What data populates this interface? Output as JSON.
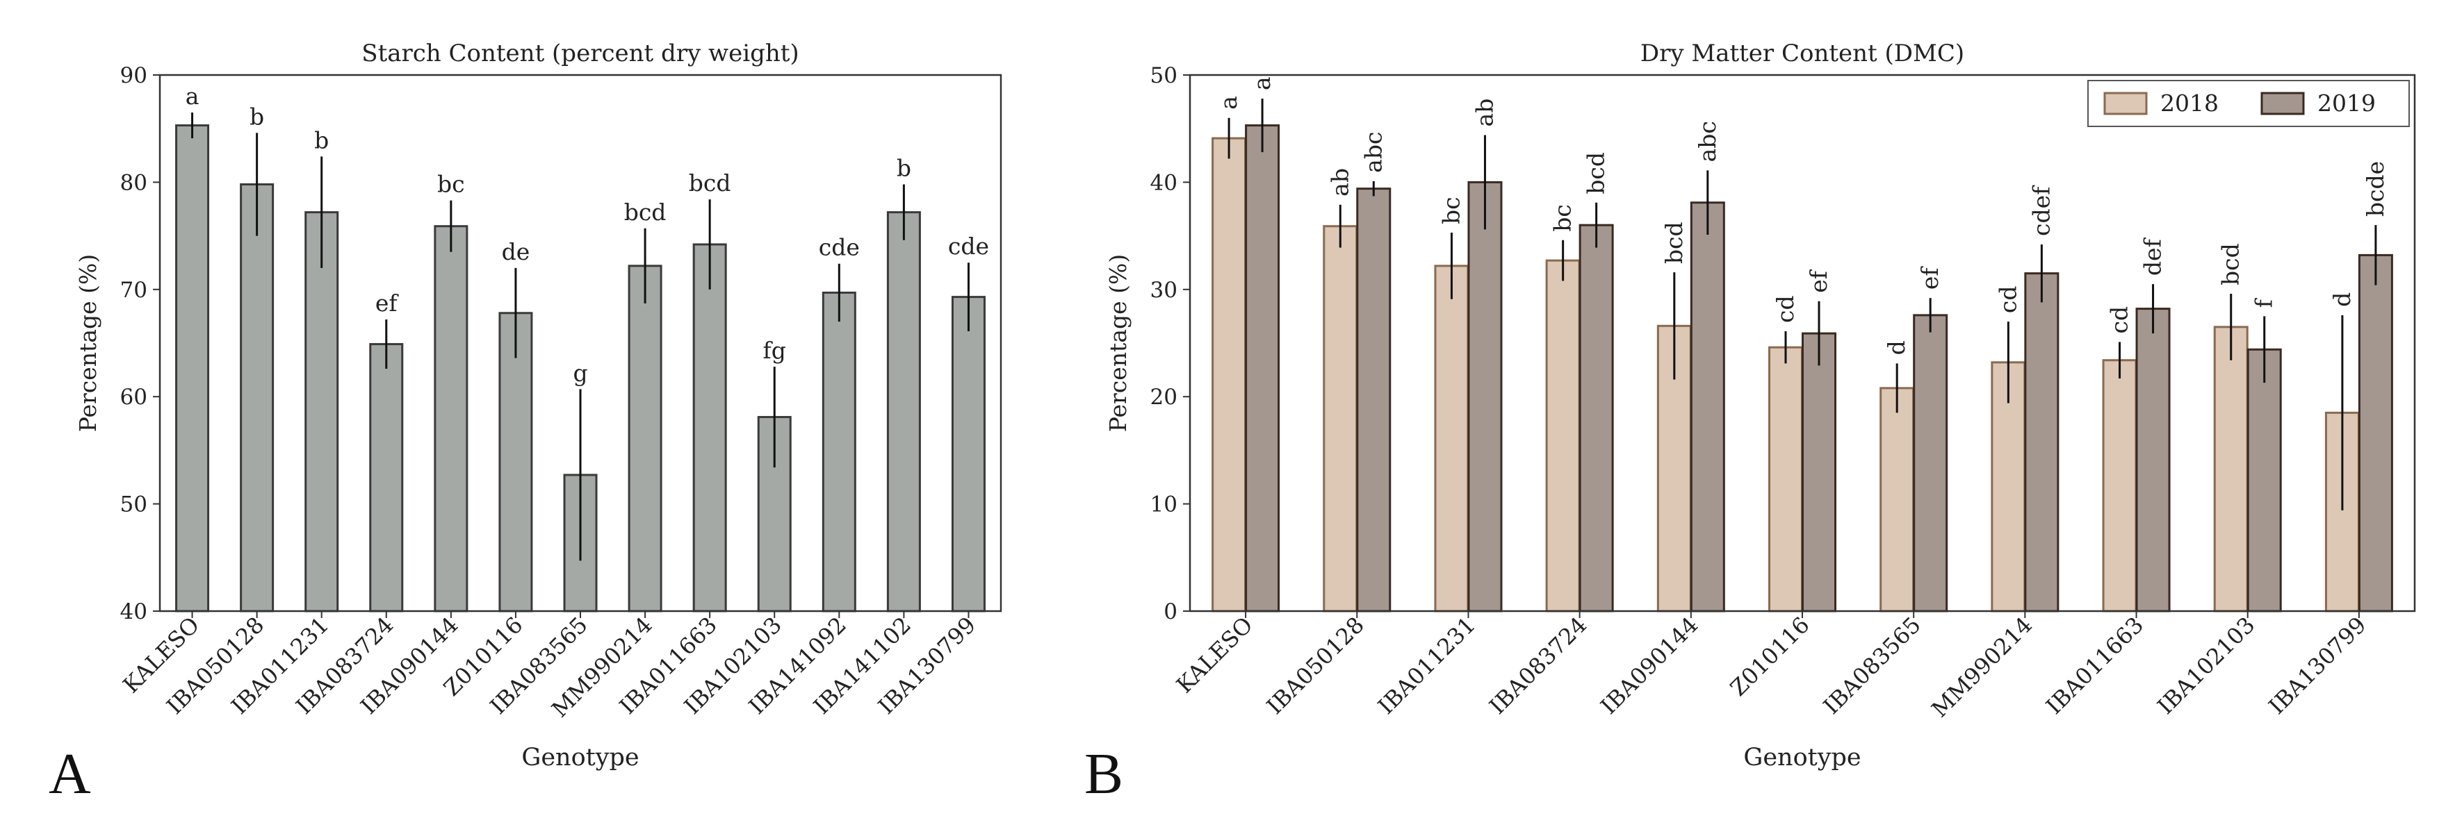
{
  "panels": {
    "a": {
      "letter": "A"
    },
    "b": {
      "letter": "B"
    }
  },
  "chart_data": [
    {
      "id": "a",
      "type": "bar",
      "title": "Starch Content (percent dry weight)",
      "xlabel": "Genotype",
      "ylabel": "Percentage (%)",
      "ylim": [
        40,
        90
      ],
      "yticks": [
        40,
        50,
        60,
        70,
        80,
        90
      ],
      "categories": [
        "KALESO",
        "IBA050128",
        "IBA011231",
        "IBA083724",
        "IBA090144",
        "Z010116",
        "IBA083565",
        "MM990214",
        "IBA011663",
        "IBA102103",
        "IBA141092",
        "IBA141102",
        "IBA130799"
      ],
      "series": [
        {
          "name": "Starch",
          "color": "#a4a9a6",
          "edge": "#3a3a3a",
          "values": [
            85.3,
            79.8,
            77.2,
            64.9,
            75.9,
            67.8,
            52.7,
            72.2,
            74.2,
            58.1,
            69.7,
            77.2,
            69.3
          ],
          "errors": [
            1.2,
            4.8,
            5.2,
            2.3,
            2.4,
            4.2,
            8.0,
            3.5,
            4.2,
            4.7,
            2.7,
            2.6,
            3.2
          ],
          "letters": [
            "a",
            "b",
            "b",
            "ef",
            "bc",
            "de",
            "g",
            "bcd",
            "bcd",
            "fg",
            "cde",
            "b",
            "cde"
          ]
        }
      ]
    },
    {
      "id": "b",
      "type": "bar",
      "title": "Dry Matter Content (DMC)",
      "xlabel": "Genotype",
      "ylabel": "Percentage (%)",
      "ylim": [
        0,
        50
      ],
      "yticks": [
        0,
        10,
        20,
        30,
        40,
        50
      ],
      "legend_position": "top-right",
      "categories": [
        "KALESO",
        "IBA050128",
        "IBA011231",
        "IBA083724",
        "IBA090144",
        "Z010116",
        "IBA083565",
        "MM990214",
        "IBA011663",
        "IBA102103",
        "IBA130799"
      ],
      "series": [
        {
          "name": "2018",
          "color": "#dcc8b4",
          "edge": "#8a6a50",
          "values": [
            44.1,
            35.9,
            32.2,
            32.7,
            26.6,
            24.6,
            20.8,
            23.2,
            23.4,
            26.5,
            18.5
          ],
          "errors": [
            1.9,
            2.0,
            3.1,
            1.9,
            5.0,
            1.5,
            2.3,
            3.8,
            1.7,
            3.1,
            9.1
          ],
          "letters": [
            "a",
            "ab",
            "bc",
            "bc",
            "bcd",
            "cd",
            "d",
            "cd",
            "cd",
            "bcd",
            "d"
          ]
        },
        {
          "name": "2019",
          "color": "#a39790",
          "edge": "#3a2a22",
          "values": [
            45.3,
            39.4,
            40.0,
            36.0,
            38.1,
            25.9,
            27.6,
            31.5,
            28.2,
            24.4,
            33.2
          ],
          "errors": [
            2.5,
            0.7,
            4.4,
            2.1,
            3.0,
            3.0,
            1.6,
            2.7,
            2.3,
            3.1,
            2.8
          ],
          "letters": [
            "a",
            "abc",
            "ab",
            "bcd",
            "abc",
            "ef",
            "ef",
            "cdef",
            "def",
            "f",
            "bcde"
          ]
        }
      ]
    }
  ]
}
